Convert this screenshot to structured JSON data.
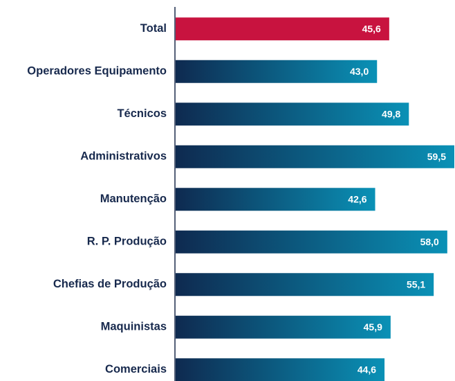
{
  "chart_data": {
    "type": "barh",
    "categories": [
      "Total",
      "Operadores Equipamento",
      "Técnicos",
      "Administrativos",
      "Manutenção",
      "R. P. Produção",
      "Chefias de Produção",
      "Maquinistas",
      "Comerciais"
    ],
    "values": [
      45.6,
      43.0,
      49.8,
      59.5,
      42.6,
      58.0,
      55.1,
      45.9,
      44.6
    ],
    "value_labels": [
      "45,6",
      "43,0",
      "49,8",
      "59,5",
      "42,6",
      "58,0",
      "55,1",
      "45,9",
      "44,6"
    ],
    "colors": [
      [
        "#c8133f",
        "#c8133f"
      ],
      [
        "#0e2a50",
        "#0a91b6"
      ],
      [
        "#0e2a50",
        "#0a91b6"
      ],
      [
        "#0e2a50",
        "#0a91b6"
      ],
      [
        "#0e2a50",
        "#0a91b6"
      ],
      [
        "#0e2a50",
        "#0a91b6"
      ],
      [
        "#0e2a50",
        "#0a91b6"
      ],
      [
        "#0e2a50",
        "#0a91b6"
      ],
      [
        "#0e2a50",
        "#0a91b6"
      ]
    ],
    "label_color": "#17294d"
  }
}
